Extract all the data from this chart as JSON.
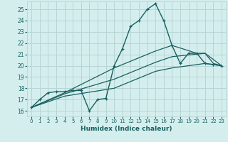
{
  "xlabel": "Humidex (Indice chaleur)",
  "bg_color": "#d4eeee",
  "grid_color": "#b8d4d4",
  "line_color": "#1a6060",
  "xlim": [
    -0.5,
    23.5
  ],
  "ylim": [
    15.5,
    25.7
  ],
  "xticks": [
    0,
    1,
    2,
    3,
    4,
    5,
    6,
    7,
    8,
    9,
    10,
    11,
    12,
    13,
    14,
    15,
    16,
    17,
    18,
    19,
    20,
    21,
    22,
    23
  ],
  "yticks": [
    16,
    17,
    18,
    19,
    20,
    21,
    22,
    23,
    24,
    25
  ],
  "curve1_x": [
    0,
    1,
    2,
    3,
    4,
    5,
    6,
    7,
    8,
    9,
    10,
    11,
    12,
    13,
    14,
    15,
    16,
    17,
    18,
    19,
    20,
    21,
    22,
    23
  ],
  "curve1_y": [
    16.3,
    17.0,
    17.6,
    17.7,
    17.7,
    17.8,
    17.8,
    16.0,
    17.0,
    17.1,
    20.0,
    21.5,
    23.5,
    24.0,
    25.0,
    25.5,
    24.0,
    21.8,
    20.2,
    21.1,
    21.1,
    20.2,
    20.1,
    20.0
  ],
  "curve2_x": [
    0,
    4,
    10,
    15,
    17,
    20,
    21,
    22,
    23
  ],
  "curve2_y": [
    16.3,
    17.6,
    19.8,
    21.3,
    21.8,
    21.1,
    21.1,
    20.2,
    20.0
  ],
  "curve3_x": [
    0,
    4,
    10,
    15,
    17,
    21,
    23
  ],
  "curve3_y": [
    16.3,
    17.5,
    18.8,
    20.3,
    20.8,
    21.1,
    20.0
  ],
  "curve4_x": [
    0,
    4,
    10,
    15,
    17,
    21,
    23
  ],
  "curve4_y": [
    16.3,
    17.3,
    18.0,
    19.5,
    19.8,
    20.2,
    20.0
  ]
}
